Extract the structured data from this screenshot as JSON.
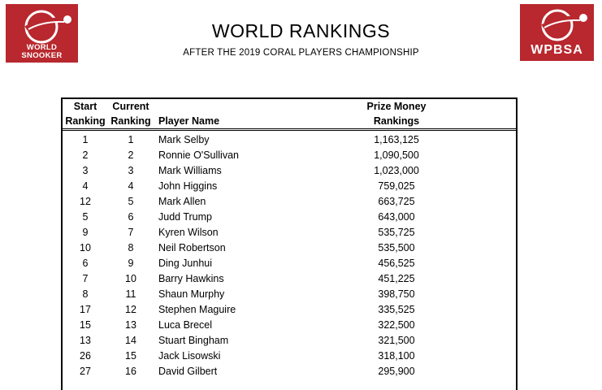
{
  "logos": {
    "left_line1": "WORLD",
    "left_line2": "SNOOKER",
    "right_text": "WPBSA",
    "brand_color": "#b8282e"
  },
  "title": "WORLD RANKINGS",
  "subtitle": "AFTER THE 2019 CORAL PLAYERS CHAMPIONSHIP",
  "table": {
    "headers": {
      "start_line1": "Start",
      "start_line2": "Ranking",
      "current_line1": "Current",
      "current_line2": "Ranking",
      "player": "Player Name",
      "money_line1": "Prize Money",
      "money_line2": "Rankings"
    },
    "rows": [
      {
        "start": "1",
        "current": "1",
        "name": "Mark Selby",
        "money": "1,163,125"
      },
      {
        "start": "2",
        "current": "2",
        "name": "Ronnie O'Sullivan",
        "money": "1,090,500"
      },
      {
        "start": "3",
        "current": "3",
        "name": "Mark Williams",
        "money": "1,023,000"
      },
      {
        "start": "4",
        "current": "4",
        "name": "John Higgins",
        "money": "759,025"
      },
      {
        "start": "12",
        "current": "5",
        "name": "Mark Allen",
        "money": "663,725"
      },
      {
        "start": "5",
        "current": "6",
        "name": "Judd Trump",
        "money": "643,000"
      },
      {
        "start": "9",
        "current": "7",
        "name": "Kyren Wilson",
        "money": "535,725"
      },
      {
        "start": "10",
        "current": "8",
        "name": "Neil Robertson",
        "money": "535,500"
      },
      {
        "start": "6",
        "current": "9",
        "name": "Ding Junhui",
        "money": "456,525"
      },
      {
        "start": "7",
        "current": "10",
        "name": "Barry Hawkins",
        "money": "451,225"
      },
      {
        "start": "8",
        "current": "11",
        "name": "Shaun Murphy",
        "money": "398,750"
      },
      {
        "start": "17",
        "current": "12",
        "name": "Stephen Maguire",
        "money": "335,525"
      },
      {
        "start": "15",
        "current": "13",
        "name": "Luca Brecel",
        "money": "322,500"
      },
      {
        "start": "13",
        "current": "14",
        "name": "Stuart Bingham",
        "money": "321,500"
      },
      {
        "start": "26",
        "current": "15",
        "name": "Jack Lisowski",
        "money": "318,100"
      },
      {
        "start": "27",
        "current": "16",
        "name": "David Gilbert",
        "money": "295,900"
      }
    ]
  }
}
